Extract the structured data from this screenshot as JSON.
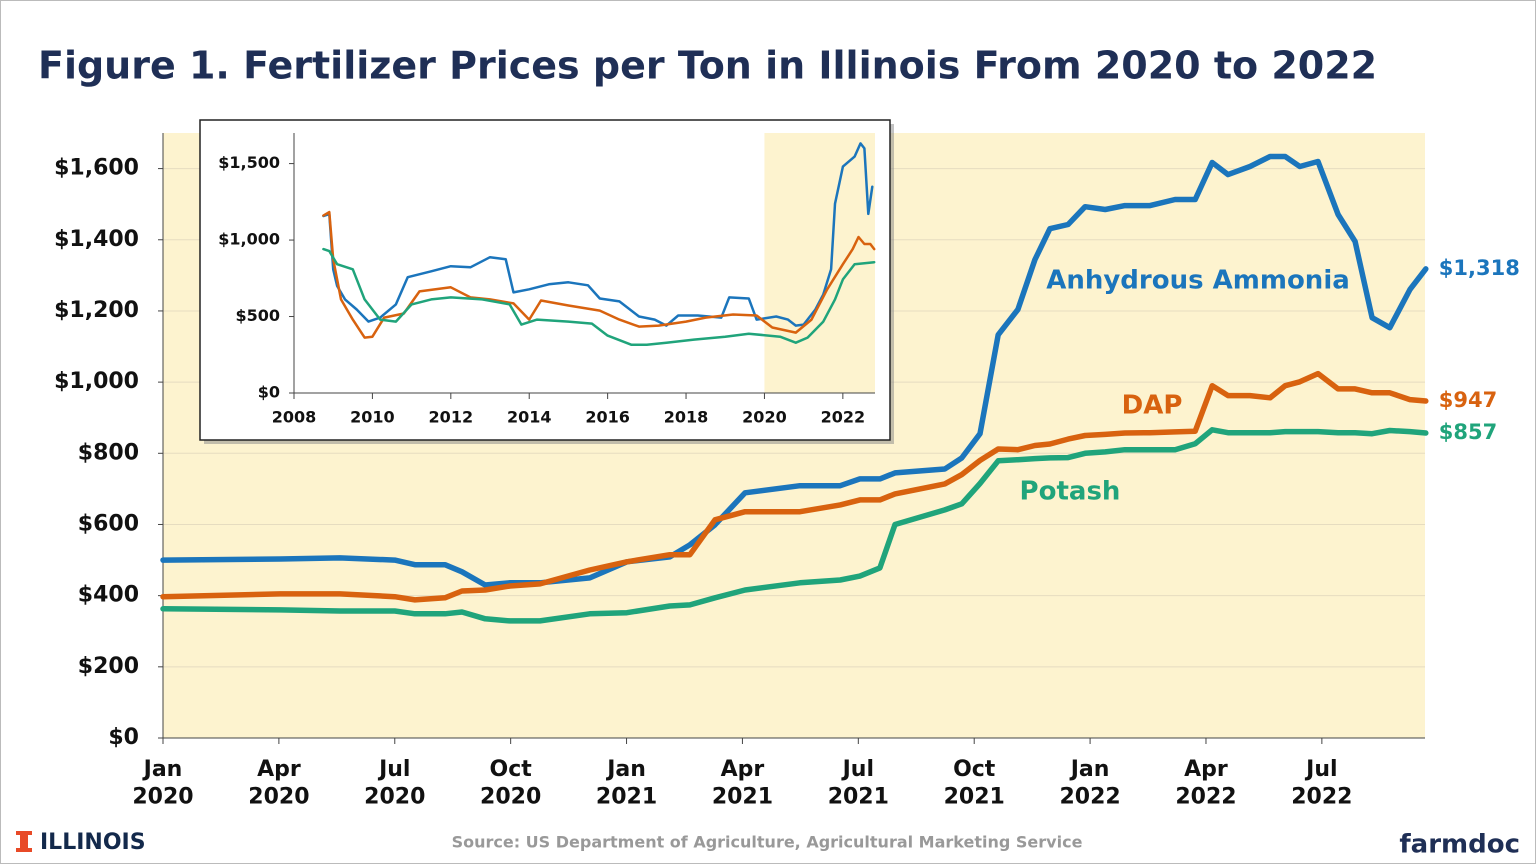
{
  "chart_data": [
    {
      "type": "line",
      "title": "Figure 1. Fertilizer Prices per Ton in Illinois From 2020 to 2022",
      "x": [
        0,
        3.03,
        4.58,
        6.0,
        6.52,
        7.3,
        7.74,
        8.34,
        8.98,
        9.76,
        11.05,
        12.01,
        13.12,
        13.64,
        14.29,
        15.07,
        16.49,
        17.53,
        18.04,
        18.56,
        18.95,
        20.24,
        20.68,
        21.15,
        21.62,
        22.13,
        22.57,
        22.96,
        23.43,
        23.87,
        24.39,
        24.9,
        25.55,
        26.2,
        26.72,
        27.16,
        27.57,
        28.14,
        28.66,
        29.05,
        29.43,
        29.9,
        30.42,
        30.86,
        31.3,
        31.76,
        32.28,
        32.69
      ],
      "xlim": [
        0,
        32.67
      ],
      "xticks": [
        {
          "value": 0,
          "label": "Jan 2020"
        },
        {
          "value": 3,
          "label": "Apr 2020"
        },
        {
          "value": 6,
          "label": "Jul 2020"
        },
        {
          "value": 9,
          "label": "Oct 2020"
        },
        {
          "value": 12,
          "label": "Jan 2021"
        },
        {
          "value": 15,
          "label": "Apr 2021"
        },
        {
          "value": 18,
          "label": "Jul 2021"
        },
        {
          "value": 21,
          "label": "Oct 2021"
        },
        {
          "value": 24,
          "label": "Jan 2022"
        },
        {
          "value": 27,
          "label": "Apr 2022"
        },
        {
          "value": 30,
          "label": "Jul 2022"
        }
      ],
      "ylim": [
        0,
        1700
      ],
      "yticks": [
        {
          "value": 0,
          "label": "$0"
        },
        {
          "value": 200,
          "label": "$200"
        },
        {
          "value": 400,
          "label": "$400"
        },
        {
          "value": 600,
          "label": "$600"
        },
        {
          "value": 800,
          "label": "$800"
        },
        {
          "value": 1000,
          "label": "$1,000"
        },
        {
          "value": 1200,
          "label": "$1,200"
        },
        {
          "value": 1400,
          "label": "$1,400"
        },
        {
          "value": 1600,
          "label": "$1,600"
        }
      ],
      "grid": true,
      "background": "#fdf3cf",
      "series": [
        {
          "name": "Anhydrous Ammonia",
          "color": "#1b75bc",
          "values": [
            500,
            503,
            506,
            500,
            487,
            487,
            467,
            430,
            436,
            436,
            450,
            495,
            509,
            543,
            599,
            689,
            709,
            709,
            728,
            728,
            745,
            756,
            787,
            855,
            1133,
            1204,
            1344,
            1431,
            1443,
            1493,
            1485,
            1496,
            1496,
            1513,
            1513,
            1617,
            1583,
            1606,
            1634,
            1634,
            1606,
            1620,
            1471,
            1395,
            1181,
            1153,
            1260,
            1318
          ],
          "value_labels": [
            null,
            null,
            null,
            null,
            null,
            null,
            null,
            null,
            null,
            null,
            null,
            null,
            null,
            null,
            null,
            null,
            null,
            null,
            null,
            null,
            null,
            null,
            null,
            null,
            null,
            null,
            null,
            null,
            null,
            null,
            null,
            null,
            null,
            null,
            null,
            null,
            null,
            null,
            null,
            null,
            null,
            null,
            null,
            null,
            null,
            null,
            null,
            "$1,318"
          ]
        },
        {
          "name": "DAP",
          "color": "#d8620f",
          "values": [
            397,
            405,
            405,
            397,
            388,
            394,
            413,
            416,
            427,
            433,
            472,
            495,
            515,
            515,
            613,
            636,
            636,
            655,
            669,
            669,
            686,
            714,
            740,
            780,
            812,
            810,
            822,
            826,
            840,
            850,
            853,
            857,
            858,
            860,
            862,
            990,
            962,
            962,
            956,
            990,
            1001,
            1024,
            981,
            981,
            970,
            970,
            951,
            947
          ],
          "value_labels": [
            null,
            null,
            null,
            null,
            null,
            null,
            null,
            null,
            null,
            null,
            null,
            null,
            null,
            null,
            null,
            null,
            null,
            null,
            null,
            null,
            null,
            null,
            null,
            null,
            null,
            null,
            null,
            null,
            null,
            null,
            null,
            null,
            null,
            null,
            null,
            null,
            null,
            null,
            null,
            null,
            null,
            null,
            null,
            null,
            null,
            null,
            null,
            "$947"
          ]
        },
        {
          "name": "Potash",
          "color": "#20a47b",
          "values": [
            363,
            360,
            357,
            357,
            349,
            349,
            354,
            335,
            329,
            329,
            349,
            352,
            371,
            374,
            394,
            416,
            436,
            444,
            455,
            478,
            600,
            641,
            658,
            715,
            779,
            782,
            785,
            787,
            788,
            800,
            804,
            810,
            810,
            810,
            827,
            866,
            858,
            858,
            858,
            861,
            861,
            861,
            858,
            858,
            855,
            864,
            861,
            857
          ],
          "value_labels": [
            null,
            null,
            null,
            null,
            null,
            null,
            null,
            null,
            null,
            null,
            null,
            null,
            null,
            null,
            null,
            null,
            null,
            null,
            null,
            null,
            null,
            null,
            null,
            null,
            null,
            null,
            null,
            null,
            null,
            null,
            null,
            null,
            null,
            null,
            null,
            null,
            null,
            null,
            null,
            null,
            null,
            null,
            null,
            null,
            null,
            null,
            null,
            "$857"
          ]
        }
      ]
    },
    {
      "type": "line",
      "xlim": [
        2008,
        2022.82
      ],
      "xticks": [
        2008,
        2010,
        2012,
        2014,
        2016,
        2018,
        2020,
        2022
      ],
      "ylim": [
        0,
        1700
      ],
      "yticks": [
        {
          "value": 0,
          "label": "$0"
        },
        {
          "value": 500,
          "label": "$500"
        },
        {
          "value": 1000,
          "label": "$1,000"
        },
        {
          "value": 1500,
          "label": "$1,500"
        }
      ],
      "shade_from": 2020,
      "background": "#fdf3cf",
      "series": [
        {
          "color": "#1b75bc",
          "x": [
            2008.75,
            2008.9,
            2009.0,
            2009.1,
            2009.3,
            2009.6,
            2009.9,
            2010.2,
            2010.6,
            2010.9,
            2011.5,
            2012.0,
            2012.5,
            2013.0,
            2013.4,
            2013.6,
            2014.0,
            2014.5,
            2015.0,
            2015.5,
            2015.8,
            2016.3,
            2016.8,
            2017.2,
            2017.5,
            2017.8,
            2018.3,
            2018.9,
            2019.1,
            2019.6,
            2019.8,
            2020.3,
            2020.6,
            2020.8,
            2021.0,
            2021.3,
            2021.5,
            2021.7,
            2021.8,
            2022.0,
            2022.3,
            2022.45,
            2022.55,
            2022.65,
            2022.75
          ],
          "values": [
            1157,
            1170,
            809,
            700,
            612,
            546,
            467,
            493,
            579,
            757,
            796,
            829,
            822,
            888,
            875,
            658,
            678,
            711,
            724,
            704,
            618,
            599,
            500,
            480,
            441,
            507,
            507,
            493,
            625,
            618,
            480,
            500,
            480,
            441,
            447,
            546,
            645,
            809,
            1237,
            1480,
            1546,
            1632,
            1599,
            1171,
            1349
          ]
        },
        {
          "color": "#d8620f",
          "x": [
            2008.75,
            2008.9,
            2009.0,
            2009.2,
            2009.5,
            2009.8,
            2010.0,
            2010.3,
            2010.8,
            2011.2,
            2012.0,
            2012.5,
            2013.0,
            2013.6,
            2014.0,
            2014.3,
            2015.0,
            2015.8,
            2016.3,
            2016.8,
            2017.3,
            2018.0,
            2018.5,
            2019.2,
            2019.8,
            2020.2,
            2020.8,
            2021.2,
            2021.6,
            2022.0,
            2022.25,
            2022.4,
            2022.55,
            2022.7,
            2022.8
          ],
          "values": [
            1160,
            1183,
            875,
            612,
            480,
            362,
            368,
            493,
            520,
            664,
            691,
            625,
            612,
            586,
            480,
            605,
            572,
            539,
            480,
            434,
            441,
            467,
            493,
            513,
            507,
            428,
            395,
            480,
            678,
            842,
            941,
            1020,
            974,
            974,
            941
          ]
        },
        {
          "color": "#20a47b",
          "x": [
            2008.75,
            2008.9,
            2009.1,
            2009.5,
            2009.8,
            2010.2,
            2010.6,
            2011.0,
            2011.5,
            2012.0,
            2012.8,
            2013.5,
            2013.8,
            2014.2,
            2015.0,
            2015.6,
            2016.0,
            2016.6,
            2017.0,
            2017.5,
            2018.2,
            2019.0,
            2019.6,
            2020.4,
            2020.8,
            2021.1,
            2021.5,
            2021.8,
            2022.0,
            2022.3,
            2022.8
          ],
          "values": [
            941,
            928,
            842,
            809,
            612,
            480,
            467,
            579,
            612,
            625,
            612,
            579,
            447,
            480,
            467,
            454,
            375,
            316,
            316,
            329,
            349,
            368,
            388,
            368,
            329,
            362,
            467,
            612,
            743,
            842,
            855
          ]
        }
      ]
    }
  ],
  "footer": {
    "logo": "ILLINOIS",
    "source": "Source: US Department of Agriculture, Agricultural Marketing Service",
    "brand": "farmdoc"
  }
}
